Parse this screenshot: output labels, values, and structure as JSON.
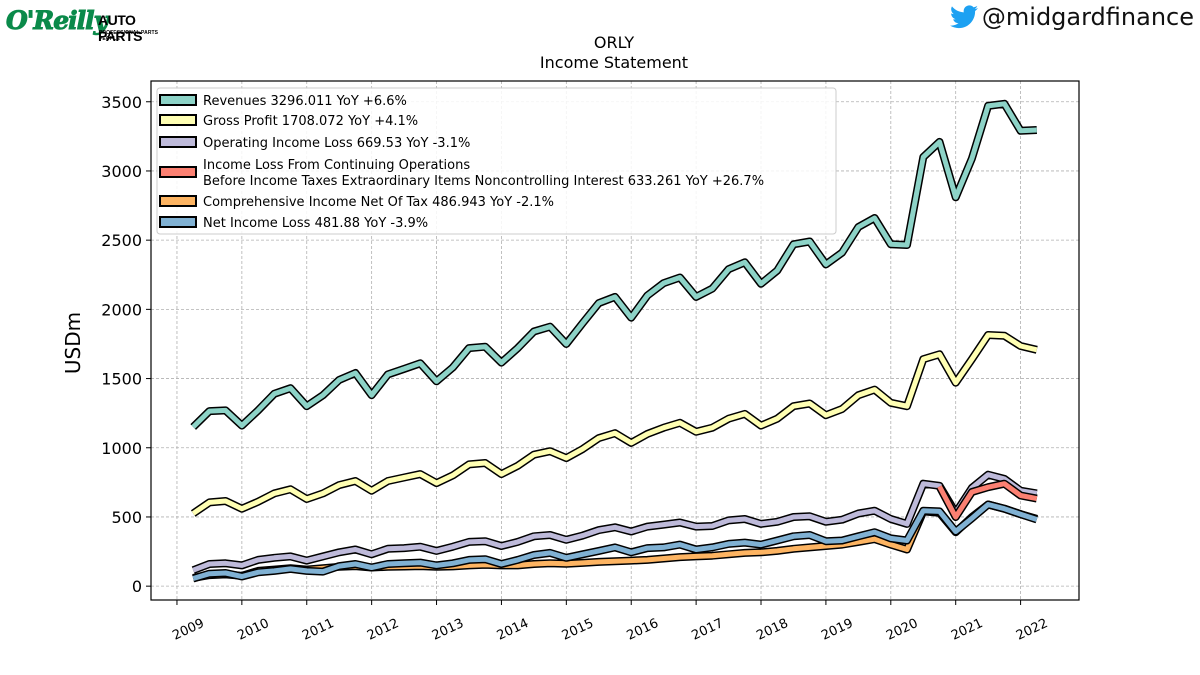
{
  "branding": {
    "logo_name": "O'Reilly",
    "logo_suffix": "AUTO PARTS",
    "logo_tagline": "PROFESSIONAL PARTS PEOPLE",
    "twitter_handle": "@midgardfinance",
    "twitter_color": "#1da1f2"
  },
  "chart_data": {
    "type": "line",
    "title": "ORLY",
    "subtitle": "Income Statement",
    "ylabel": "USDm",
    "xlabel": "",
    "xlim": [
      2008.6,
      2022.9
    ],
    "ylim": [
      -100,
      3650
    ],
    "yticks": [
      0,
      500,
      1000,
      1500,
      2000,
      2500,
      3000,
      3500
    ],
    "xticks": [
      "2009",
      "2010",
      "2011",
      "2012",
      "2013",
      "2014",
      "2015",
      "2016",
      "2017",
      "2018",
      "2019",
      "2020",
      "2021",
      "2022"
    ],
    "grid": true,
    "legend_position": "top-left",
    "x_start": 2009.25,
    "x_step": 0.25,
    "series": [
      {
        "name": "Revenues 3296.011 YoY +6.6%",
        "color": "#8dd3c7",
        "values": [
          1150,
          1265,
          1270,
          1160,
          1270,
          1390,
          1430,
          1300,
          1380,
          1490,
          1540,
          1380,
          1530,
          1570,
          1610,
          1480,
          1580,
          1720,
          1730,
          1615,
          1720,
          1840,
          1875,
          1750,
          1900,
          2045,
          2090,
          1940,
          2100,
          2190,
          2230,
          2090,
          2150,
          2290,
          2340,
          2185,
          2280,
          2470,
          2490,
          2325,
          2410,
          2595,
          2660,
          2470,
          2465,
          3100,
          3210,
          2810,
          3090,
          3470,
          3485,
          3290,
          3296
        ]
      },
      {
        "name": "Gross Profit 1708.072 YoY +4.1%",
        "color": "#ffffb3",
        "values": [
          525,
          605,
          615,
          560,
          610,
          670,
          700,
          630,
          670,
          730,
          760,
          690,
          760,
          785,
          810,
          745,
          800,
          880,
          890,
          810,
          870,
          950,
          975,
          925,
          990,
          1070,
          1105,
          1035,
          1100,
          1145,
          1180,
          1115,
          1145,
          1210,
          1245,
          1160,
          1210,
          1300,
          1320,
          1235,
          1280,
          1380,
          1420,
          1325,
          1300,
          1640,
          1675,
          1470,
          1640,
          1815,
          1810,
          1735,
          1708
        ]
      },
      {
        "name": "Operating Income Loss 669.53 YoY -3.1%",
        "color": "#bebada",
        "values": [
          115,
          160,
          165,
          150,
          190,
          205,
          215,
          185,
          215,
          245,
          265,
          230,
          270,
          275,
          285,
          255,
          285,
          320,
          325,
          290,
          320,
          360,
          370,
          335,
          365,
          405,
          425,
          395,
          430,
          445,
          460,
          430,
          435,
          475,
          485,
          450,
          465,
          500,
          505,
          465,
          480,
          525,
          545,
          485,
          450,
          740,
          725,
          530,
          710,
          805,
          775,
          690,
          670
        ]
      },
      {
        "name": "Income Loss From Continuing Operations\nBefore Income Taxes Extraordinary Items Noncontrolling Interest 633.261 YoY +26.7%",
        "color": "#fb8072",
        "values": [
          null,
          null,
          null,
          null,
          null,
          null,
          null,
          null,
          null,
          null,
          null,
          null,
          null,
          null,
          null,
          null,
          null,
          null,
          null,
          null,
          null,
          null,
          null,
          null,
          null,
          null,
          null,
          null,
          null,
          null,
          null,
          null,
          null,
          null,
          null,
          null,
          null,
          null,
          null,
          null,
          null,
          null,
          null,
          null,
          null,
          null,
          720,
          500,
          680,
          715,
          740,
          655,
          633
        ]
      },
      {
        "name": "Comprehensive Income Net Of Tax 486.943 YoY -2.1%",
        "color": "#fdb462",
        "values": [
          60,
          80,
          85,
          75,
          110,
          120,
          130,
          120,
          130,
          140,
          145,
          135,
          140,
          142,
          145,
          140,
          143,
          150,
          155,
          150,
          150,
          160,
          165,
          162,
          168,
          175,
          180,
          185,
          190,
          200,
          210,
          215,
          220,
          230,
          240,
          245,
          255,
          270,
          280,
          290,
          300,
          320,
          340,
          300,
          265,
          540,
          530,
          390,
          500,
          590,
          560,
          520,
          487
        ]
      },
      {
        "name": "Net Income Loss 481.88 YoY -3.9%",
        "color": "#80b1d3",
        "values": [
          55,
          90,
          95,
          70,
          100,
          110,
          125,
          110,
          105,
          145,
          160,
          135,
          160,
          165,
          170,
          150,
          165,
          190,
          195,
          160,
          190,
          225,
          240,
          205,
          230,
          255,
          280,
          245,
          275,
          280,
          300,
          265,
          280,
          305,
          315,
          300,
          330,
          360,
          370,
          325,
          330,
          360,
          390,
          345,
          330,
          545,
          540,
          395,
          490,
          590,
          560,
          520,
          482
        ]
      }
    ]
  }
}
